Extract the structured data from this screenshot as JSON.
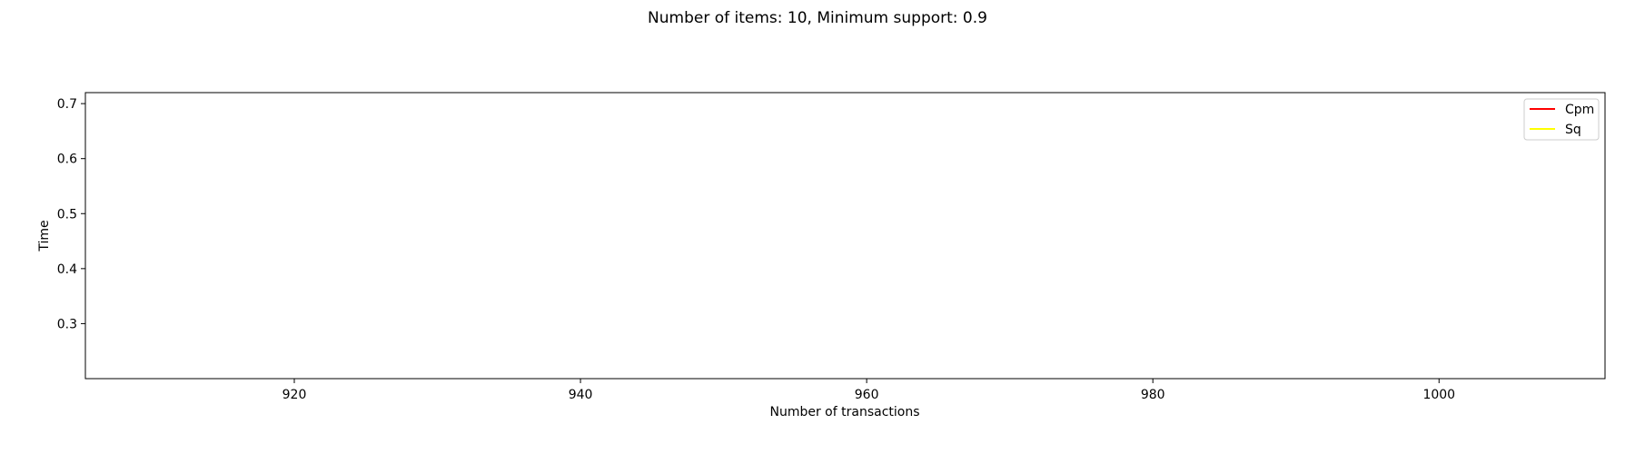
{
  "chart_data": {
    "type": "line",
    "title": "Number of items: 10, Minimum support: 0.9",
    "xlabel": "Number of transactions",
    "ylabel": "Time",
    "xlim": [
      905.4,
      1011.6
    ],
    "ylim": [
      0.2,
      0.72
    ],
    "xticks": [
      920,
      940,
      960,
      980,
      1000
    ],
    "yticks": [
      0.3,
      0.4,
      0.5,
      0.6,
      0.7
    ],
    "grid": false,
    "legend_position": "top-right",
    "series": [
      {
        "name": "Cpm",
        "color": "#ff0000",
        "x": [],
        "y": []
      },
      {
        "name": "Sq",
        "color": "#ffff00",
        "x": [],
        "y": []
      }
    ]
  }
}
